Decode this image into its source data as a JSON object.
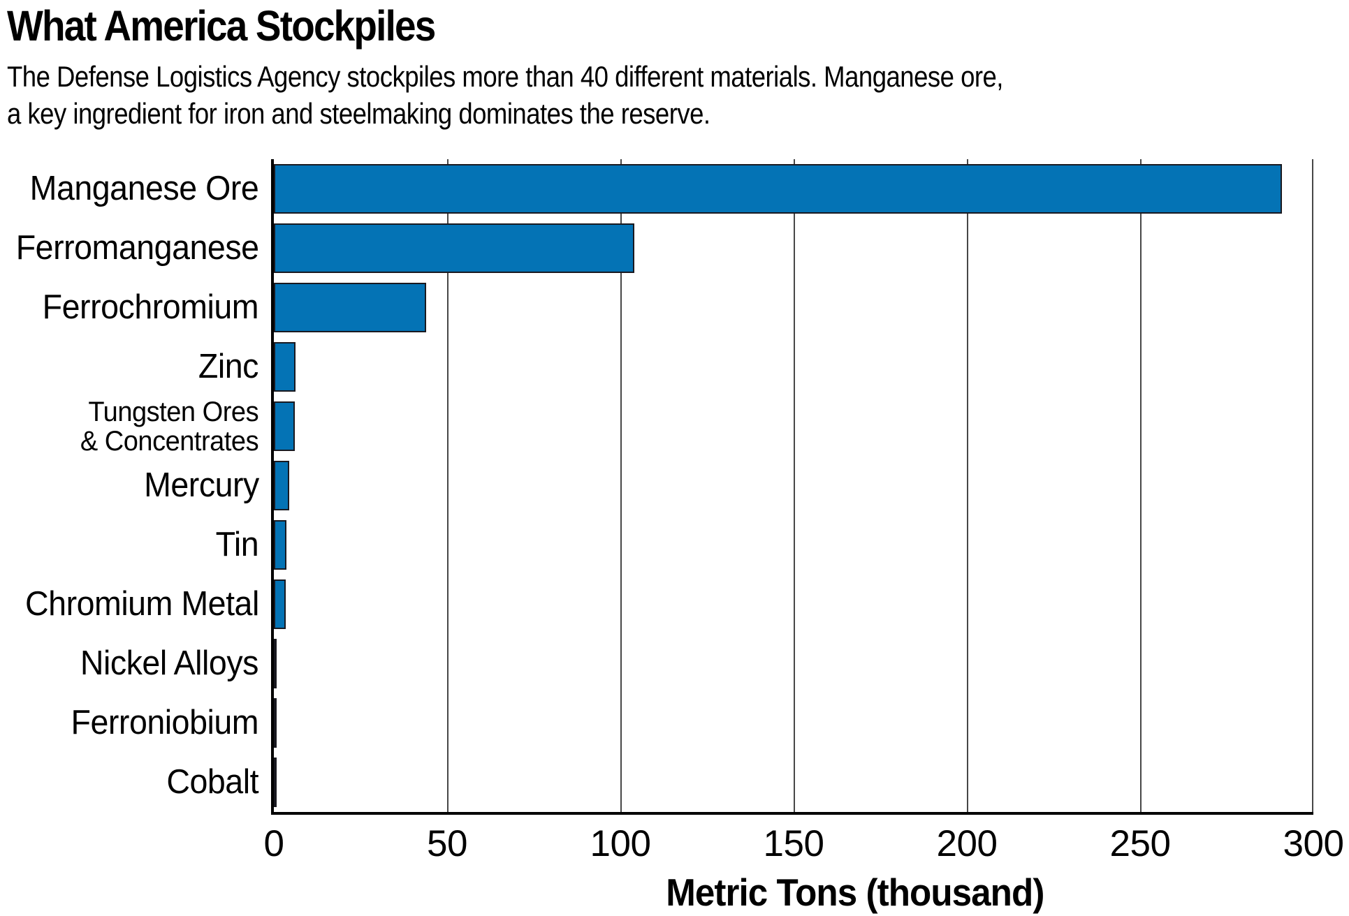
{
  "chart_data": {
    "type": "bar",
    "orientation": "horizontal",
    "title": "What America Stockpiles",
    "subtitle": "The Defense Logistics Agency stockpiles more than 40 different materials. Manganese ore, a key ingredient for iron and steelmaking dominates the reserve.",
    "subtitle_lines": [
      "The Defense Logistics Agency stockpiles more than 40 different materials. Manganese ore,",
      "a key ingredient for iron and steelmaking dominates the reserve."
    ],
    "categories": [
      "Manganese Ore",
      "Ferromanganese",
      "Ferrochromium",
      "Zinc",
      "Tungsten Ores\n& Concentrates",
      "Mercury",
      "Tin",
      "Chromium Metal",
      "Nickel Alloys",
      "Ferroniobium",
      "Cobalt"
    ],
    "values": [
      291,
      104,
      44,
      6.3,
      6.0,
      4.4,
      3.6,
      3.4,
      0.9,
      0.5,
      0.15
    ],
    "xlabel": "Metric Tons (thousand)",
    "xlim": [
      0,
      300
    ],
    "xticks": [
      0,
      50,
      100,
      150,
      200,
      250,
      300
    ],
    "grid": true,
    "legend": "none",
    "colors": {
      "bar_fill": "#0473B5",
      "bar_outline": "#191920",
      "gridline": "#474747",
      "axis": "#000000",
      "text": "#000000",
      "background": "#ffffff"
    }
  }
}
